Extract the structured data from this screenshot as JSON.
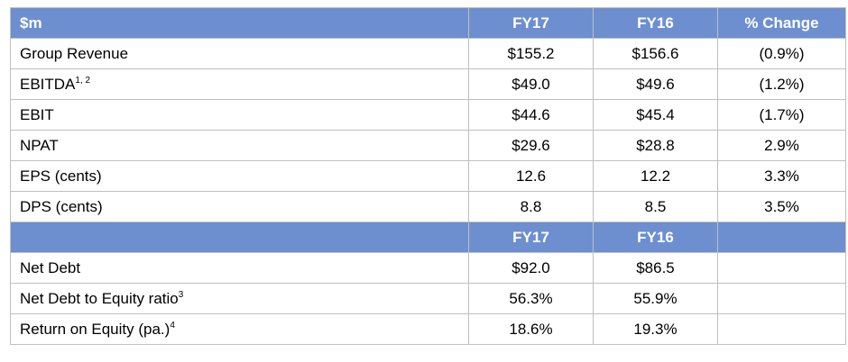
{
  "header": {
    "label": "$m",
    "cols": [
      "FY17",
      "FY16",
      "% Change"
    ]
  },
  "rows": [
    {
      "label": "Group Revenue",
      "sup": "",
      "fy17": "$155.2",
      "fy16": "$156.6",
      "change": "(0.9%)"
    },
    {
      "label": "EBITDA",
      "sup": "1, 2",
      "fy17": "$49.0",
      "fy16": "$49.6",
      "change": "(1.2%)"
    },
    {
      "label": "EBIT",
      "sup": "",
      "fy17": "$44.6",
      "fy16": "$45.4",
      "change": "(1.7%)"
    },
    {
      "label": "NPAT",
      "sup": "",
      "fy17": "$29.6",
      "fy16": "$28.8",
      "change": "2.9%"
    },
    {
      "label": "EPS (cents)",
      "sup": "",
      "fy17": "12.6",
      "fy16": "12.2",
      "change": "3.3%"
    },
    {
      "label": "DPS (cents)",
      "sup": "",
      "fy17": "8.8",
      "fy16": "8.5",
      "change": "3.5%"
    }
  ],
  "header2": {
    "cols": [
      "FY17",
      "FY16"
    ]
  },
  "rows2": [
    {
      "label": "Net Debt",
      "sup": "",
      "fy17": "$92.0",
      "fy16": "$86.5"
    },
    {
      "label": "Net Debt to Equity ratio",
      "sup": "3",
      "fy17": "56.3%",
      "fy16": "55.9%"
    },
    {
      "label": "Return on Equity (pa.)",
      "sup": "4",
      "fy17": "18.6%",
      "fy16": "19.3%"
    }
  ],
  "colors": {
    "header_bg": "#6d8fcf",
    "grid": "#bfbfbf"
  }
}
